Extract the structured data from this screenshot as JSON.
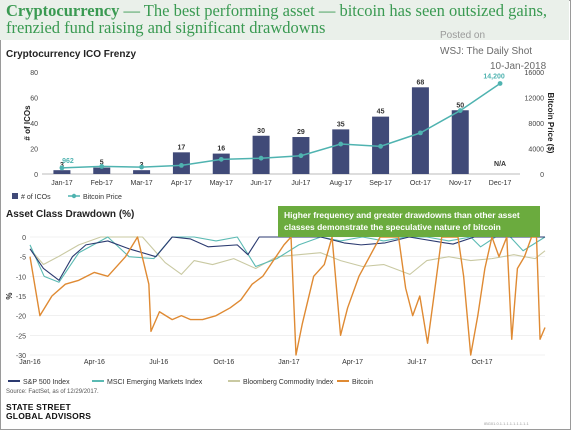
{
  "header": {
    "headline_bold": "Cryptocurrency",
    "headline_rest": " — The best performing asset — bitcoin has seen outsized gains, frenzied fund raising and significant drawdowns",
    "posted_on": "Posted on",
    "source_line": "WSJ: The Daily Shot",
    "date": "10-Jan-2018"
  },
  "colors": {
    "ico_bar": "#404a78",
    "bitcoin_price": "#4fb3b0",
    "sp500": "#2b3a70",
    "msci": "#5bbab3",
    "bloomberg": "#c9c9a2",
    "bitcoin": "#df8a33",
    "annotation_bg": "#6bab3e"
  },
  "annotation": "Higher frequency and greater drawdowns than other asset classes demonstrate the speculative nature of bitcoin",
  "footer": {
    "source_note": "Source: FactSet, as of 12/29/2017.",
    "logo_line1": "STATE STREET",
    "logo_line2": "GLOBAL ADVISORS",
    "fine_print": "IBG01.0.1.1.1.1.1.1.1.1.1"
  },
  "chart_data": [
    {
      "type": "bar",
      "title": "Cryptocurrency ICO Frenzy",
      "categories": [
        "Jan-17",
        "Feb-17",
        "Mar-17",
        "Apr-17",
        "May-17",
        "Jun-17",
        "Jul-17",
        "Aug-17",
        "Sep-17",
        "Oct-17",
        "Nov-17",
        "Dec-17"
      ],
      "series": [
        {
          "name": "# of ICOs",
          "axis": "left",
          "values": [
            3,
            5,
            3,
            17,
            16,
            30,
            29,
            35,
            45,
            68,
            50,
            null
          ],
          "labels": [
            "3",
            "5",
            "3",
            "17",
            "16",
            "30",
            "29",
            "35",
            "45",
            "68",
            "50",
            "N/A"
          ]
        },
        {
          "name": "Bitcoin Price",
          "axis": "right",
          "type": "line",
          "values": [
            962,
            1190,
            1080,
            1350,
            2300,
            2480,
            2870,
            4700,
            4340,
            6450,
            9950,
            14200
          ],
          "labels": [
            "962",
            "",
            "",
            "",
            "",
            "",
            "",
            "",
            "",
            "",
            "",
            "14,200"
          ]
        }
      ],
      "ylabel": "# of ICOs",
      "ylim": [
        0,
        80
      ],
      "yticks": [
        0,
        20,
        40,
        60,
        80
      ],
      "y2label": "Bitcoin Price ($)",
      "y2lim": [
        0,
        16000
      ],
      "y2ticks": [
        0,
        4000,
        8000,
        12000,
        16000
      ]
    },
    {
      "type": "line",
      "title": "Asset Class Drawdown (%)",
      "ylabel": "%",
      "ylim": [
        -30,
        0
      ],
      "yticks": [
        0,
        -5,
        -10,
        -15,
        -20,
        -25,
        -30
      ],
      "x_ticks": [
        "Jan-16",
        "Apr-16",
        "Jul-16",
        "Oct-16",
        "Jan-17",
        "Apr-17",
        "Jul-17",
        "Oct-17"
      ],
      "x_range": [
        "2016-01-01",
        "2017-12-29"
      ],
      "legend": "bottom",
      "series": [
        {
          "name": "S&P 500 Index",
          "x": [
            "2016-01-01",
            "2016-01-20",
            "2016-02-11",
            "2016-03-01",
            "2016-03-20",
            "2016-04-20",
            "2016-05-20",
            "2016-06-27",
            "2016-07-20",
            "2016-08-15",
            "2016-09-09",
            "2016-10-20",
            "2016-11-04",
            "2016-11-20",
            "2016-12-20",
            "2017-02-15",
            "2017-03-20",
            "2017-04-13",
            "2017-05-17",
            "2017-06-20",
            "2017-08-10",
            "2017-08-21",
            "2017-09-20",
            "2017-10-20",
            "2017-11-20",
            "2017-12-29"
          ],
          "y": [
            -3.0,
            -8.0,
            -11.0,
            -5.0,
            -2.0,
            -1.0,
            -3.0,
            -5.0,
            0.0,
            -0.5,
            -2.5,
            -2.0,
            -4.5,
            0.0,
            0.0,
            0.0,
            -1.5,
            -2.0,
            -1.5,
            0.0,
            -1.5,
            -1.8,
            0.0,
            0.0,
            0.0,
            0.0
          ]
        },
        {
          "name": "MSCI Emerging  Markets Index",
          "x": [
            "2016-01-01",
            "2016-01-21",
            "2016-02-11",
            "2016-03-10",
            "2016-04-20",
            "2016-05-20",
            "2016-06-24",
            "2016-07-20",
            "2016-08-20",
            "2016-09-20",
            "2016-10-20",
            "2016-11-15",
            "2016-12-15",
            "2017-01-15",
            "2017-02-15",
            "2017-03-15",
            "2017-04-15",
            "2017-05-15",
            "2017-06-15",
            "2017-07-15",
            "2017-08-15",
            "2017-09-15",
            "2017-09-29",
            "2017-10-20",
            "2017-11-10",
            "2017-11-28",
            "2017-12-29"
          ],
          "y": [
            -2.0,
            -10.0,
            -11.5,
            -4.0,
            0.0,
            -5.0,
            -5.5,
            0.0,
            0.0,
            -1.0,
            0.0,
            -7.5,
            -5.5,
            -2.0,
            0.0,
            -1.0,
            0.0,
            -1.0,
            0.0,
            0.0,
            -1.0,
            0.0,
            -2.5,
            0.0,
            0.0,
            -3.5,
            0.0
          ]
        },
        {
          "name": "Bloomberg Commodity Index",
          "x": [
            "2016-01-01",
            "2016-01-20",
            "2016-02-10",
            "2016-03-10",
            "2016-04-10",
            "2016-05-15",
            "2016-06-08",
            "2016-07-10",
            "2016-08-02",
            "2016-08-20",
            "2016-09-15",
            "2016-10-15",
            "2016-11-15",
            "2016-12-15",
            "2017-01-15",
            "2017-02-15",
            "2017-03-15",
            "2017-04-15",
            "2017-05-15",
            "2017-06-21",
            "2017-07-15",
            "2017-08-15",
            "2017-09-15",
            "2017-10-15",
            "2017-11-15",
            "2017-12-15",
            "2017-12-29"
          ],
          "y": [
            -3.0,
            -7.0,
            -5.0,
            -2.0,
            0.0,
            0.0,
            0.0,
            -6.5,
            -9.5,
            -6.0,
            -7.0,
            -5.5,
            -8.0,
            -5.0,
            -4.5,
            -4.0,
            -6.0,
            -7.5,
            -7.0,
            -9.5,
            -6.0,
            -5.0,
            -6.0,
            -5.5,
            -4.5,
            -5.5,
            -3.5
          ]
        },
        {
          "name": "Bitcoin",
          "x": [
            "2016-01-01",
            "2016-01-15",
            "2016-02-01",
            "2016-02-20",
            "2016-03-10",
            "2016-04-01",
            "2016-04-20",
            "2016-05-15",
            "2016-06-01",
            "2016-06-17",
            "2016-06-20",
            "2016-07-02",
            "2016-07-20",
            "2016-08-02",
            "2016-08-15",
            "2016-09-01",
            "2016-09-20",
            "2016-10-10",
            "2016-10-25",
            "2016-11-10",
            "2016-11-25",
            "2016-12-10",
            "2016-12-25",
            "2017-01-04",
            "2017-01-11",
            "2017-01-20",
            "2017-02-05",
            "2017-02-20",
            "2017-03-03",
            "2017-03-15",
            "2017-03-25",
            "2017-04-10",
            "2017-04-25",
            "2017-05-10",
            "2017-05-25",
            "2017-06-05",
            "2017-06-15",
            "2017-06-25",
            "2017-07-05",
            "2017-07-16",
            "2017-07-25",
            "2017-08-05",
            "2017-08-15",
            "2017-08-28",
            "2017-09-05",
            "2017-09-15",
            "2017-09-25",
            "2017-10-05",
            "2017-10-15",
            "2017-10-25",
            "2017-11-05",
            "2017-11-12",
            "2017-11-20",
            "2017-11-30",
            "2017-12-10",
            "2017-12-17",
            "2017-12-22",
            "2017-12-29"
          ],
          "y": [
            -5.0,
            -20.0,
            -15.0,
            -12.0,
            -11.0,
            -9.0,
            -10.0,
            -5.0,
            0.0,
            -12.0,
            -24.0,
            -19.0,
            -21.0,
            -20.0,
            -21.0,
            -21.0,
            -20.0,
            -18.0,
            -16.0,
            -12.0,
            -10.0,
            -6.0,
            -2.0,
            0.0,
            -30.0,
            -22.0,
            -10.0,
            -7.0,
            0.0,
            -25.0,
            -18.0,
            -10.0,
            -5.0,
            0.0,
            0.0,
            0.0,
            -13.0,
            -20.0,
            -15.0,
            -27.0,
            -15.0,
            0.0,
            0.0,
            0.0,
            -10.0,
            -30.0,
            -20.0,
            -8.0,
            0.0,
            -5.0,
            0.0,
            -26.0,
            -8.0,
            -5.0,
            0.0,
            0.0,
            -26.0,
            -23.0
          ]
        }
      ]
    }
  ]
}
